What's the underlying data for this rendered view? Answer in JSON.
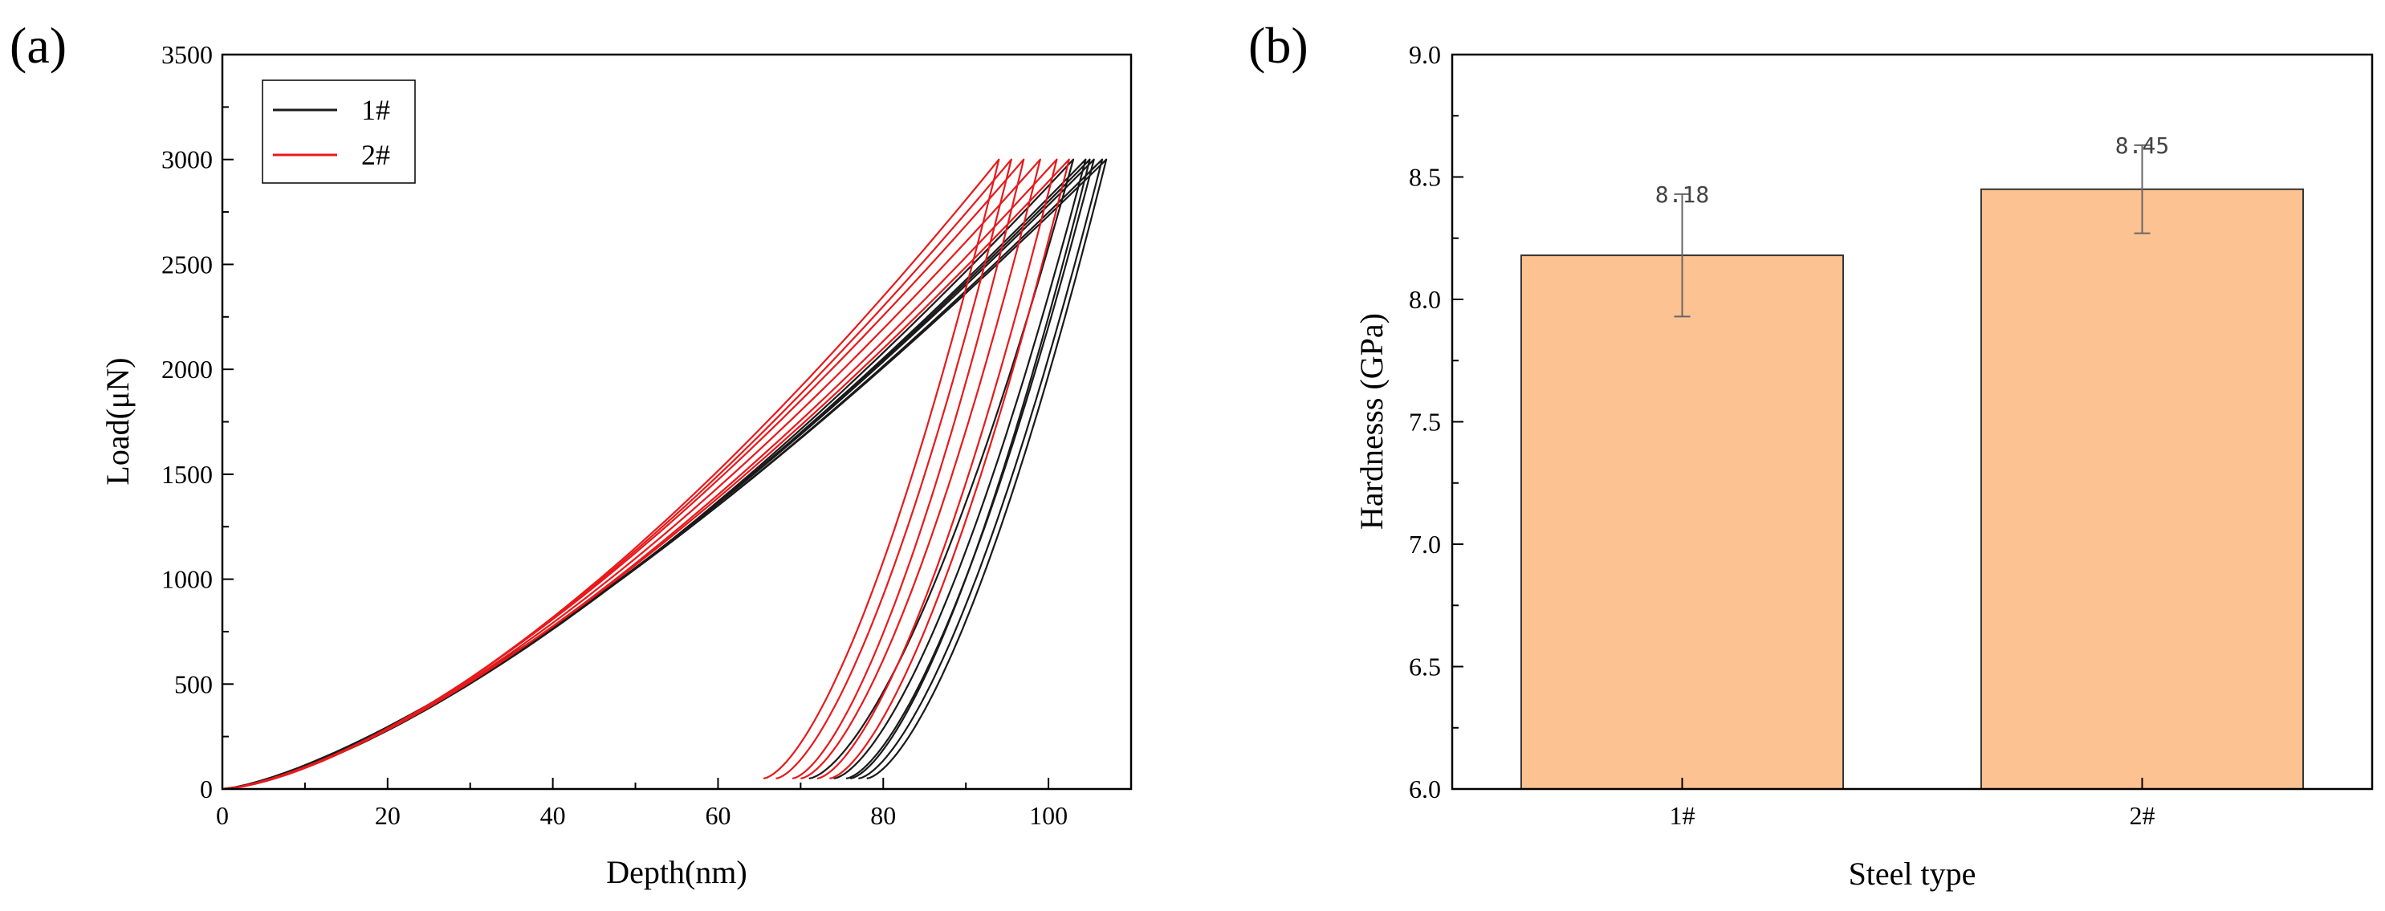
{
  "colors": {
    "series_1": "#1a1a1a",
    "series_2": "#e8191b",
    "bar_fill": "#fdc291",
    "bar_edge": "#333333",
    "error_bar": "#666666",
    "axis": "#000000"
  },
  "chart_data": [
    {
      "panel_label": "(a)",
      "type": "line",
      "title": "",
      "xlabel": "Depth(nm)",
      "ylabel": "Load(μN)",
      "xlim": [
        0,
        110
      ],
      "ylim": [
        0,
        3500
      ],
      "x_ticks": [
        0,
        20,
        40,
        60,
        80,
        100
      ],
      "y_ticks": [
        0,
        500,
        1000,
        1500,
        2000,
        2500,
        3000,
        3500
      ],
      "grid": false,
      "legend_position": "top-left",
      "peak_load": 3000,
      "series": [
        {
          "name": "1#",
          "color_key": "series_1",
          "curves": [
            {
              "max_depth": 103.0,
              "residual_depth": 71.0,
              "load_exp": 1.45
            },
            {
              "max_depth": 104.5,
              "residual_depth": 74.0,
              "load_exp": 1.42
            },
            {
              "max_depth": 105.5,
              "residual_depth": 75.5,
              "load_exp": 1.4
            },
            {
              "max_depth": 106.5,
              "residual_depth": 77.0,
              "load_exp": 1.39
            },
            {
              "max_depth": 107.0,
              "residual_depth": 78.0,
              "load_exp": 1.38
            },
            {
              "max_depth": 105.0,
              "residual_depth": 76.0,
              "load_exp": 1.41
            }
          ]
        },
        {
          "name": "2#",
          "color_key": "series_2",
          "curves": [
            {
              "max_depth": 94.0,
              "residual_depth": 65.5,
              "load_exp": 1.52
            },
            {
              "max_depth": 95.5,
              "residual_depth": 67.0,
              "load_exp": 1.5
            },
            {
              "max_depth": 97.0,
              "residual_depth": 69.0,
              "load_exp": 1.48
            },
            {
              "max_depth": 99.0,
              "residual_depth": 70.0,
              "load_exp": 1.47
            },
            {
              "max_depth": 101.0,
              "residual_depth": 72.0,
              "load_exp": 1.46
            },
            {
              "max_depth": 102.5,
              "residual_depth": 73.5,
              "load_exp": 1.44
            }
          ]
        }
      ]
    },
    {
      "panel_label": "(b)",
      "type": "bar",
      "title": "",
      "xlabel": "Steel type",
      "ylabel": "Hardnesss (GPa)",
      "categories": [
        "1#",
        "2#"
      ],
      "values": [
        8.18,
        8.45
      ],
      "errors": [
        0.25,
        0.18
      ],
      "value_labels": [
        "8.18",
        "8.45"
      ],
      "ylim": [
        6.0,
        9.0
      ],
      "y_ticks": [
        "6.0",
        "6.5",
        "7.0",
        "7.5",
        "8.0",
        "8.5",
        "9.0"
      ],
      "grid": false
    }
  ]
}
